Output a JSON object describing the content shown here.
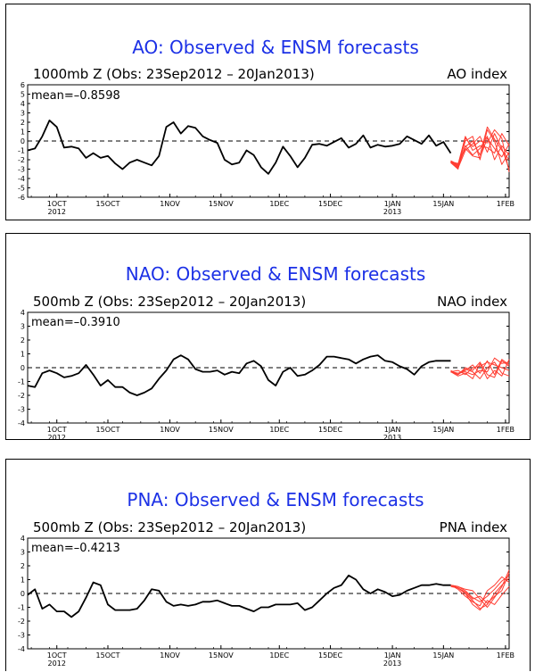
{
  "chart_data": [
    {
      "type": "line",
      "title": "AO: Observed & ENSM forecasts",
      "subtitle_left": "1000mb Z (Obs: 23Sep2012 – 20Jan2013)",
      "subtitle_right": "AO index",
      "mean_label": "mean=–0.8598",
      "ylim": [
        -6,
        6
      ],
      "yticks": [
        -6,
        -5,
        -4,
        -3,
        -2,
        -1,
        0,
        1,
        2,
        3,
        4,
        5,
        6
      ],
      "xticks": [
        "1OCT",
        "15OCT",
        "1NOV",
        "15NOV",
        "1DEC",
        "15DEC",
        "1JAN",
        "15JAN",
        "1FEB"
      ],
      "xtick_years": [
        "2012",
        "2013"
      ],
      "xlim_days": [
        0,
        132
      ],
      "grid": false,
      "zero_line": "dashed",
      "observed_color": "#000000",
      "forecast_color": "#ff3b30",
      "observed": {
        "day": [
          0,
          2,
          4,
          6,
          8,
          10,
          12,
          14,
          16,
          18,
          20,
          22,
          24,
          26,
          28,
          30,
          32,
          34,
          36,
          38,
          40,
          42,
          44,
          46,
          48,
          50,
          52,
          54,
          56,
          58,
          60,
          62,
          64,
          66,
          68,
          70,
          72,
          74,
          76,
          78,
          80,
          82,
          84,
          86,
          88,
          90,
          92,
          94,
          96,
          98,
          100,
          102,
          104,
          106,
          108,
          110,
          112,
          114,
          116
        ],
        "value": [
          -1,
          -0.8,
          0.5,
          2.2,
          1.5,
          -0.7,
          -0.6,
          -0.8,
          -1.8,
          -1.3,
          -1.8,
          -1.6,
          -2.4,
          -3,
          -2.3,
          -2,
          -2.3,
          -2.6,
          -1.6,
          1.5,
          2,
          0.8,
          1.6,
          1.4,
          0.5,
          0.1,
          -0.2,
          -2,
          -2.5,
          -2.3,
          -1,
          -1.5,
          -2.8,
          -3.5,
          -2.3,
          -0.6,
          -1.6,
          -2.8,
          -1.8,
          -0.4,
          -0.3,
          -0.5,
          -0.1,
          0.3,
          -0.7,
          -0.3,
          0.6,
          -0.7,
          -0.4,
          -0.6,
          -0.5,
          -0.3,
          0.5,
          0.1,
          -0.3,
          0.6,
          -0.5,
          -0.1,
          -1.3
        ]
      },
      "forecast": [
        {
          "day": [
            116,
            118,
            120,
            122,
            124,
            126,
            128,
            130,
            132
          ],
          "value": [
            -2.2,
            -2.8,
            -0.5,
            -1.5,
            -0.8,
            0.5,
            -2,
            -0.5,
            -1.5
          ]
        },
        {
          "day": [
            116,
            118,
            120,
            122,
            124,
            126,
            128,
            130,
            132
          ],
          "value": [
            -2.2,
            -2.6,
            0,
            0.5,
            -2,
            1.2,
            0,
            -2.5,
            -1.2
          ]
        },
        {
          "day": [
            116,
            118,
            120,
            122,
            124,
            126,
            128,
            130,
            132
          ],
          "value": [
            -2.3,
            -2.9,
            -1,
            -0.3,
            0.5,
            -1.2,
            0.8,
            -0.8,
            -3
          ]
        },
        {
          "day": [
            116,
            118,
            120,
            122,
            124,
            126,
            128,
            130,
            132
          ],
          "value": [
            -2.1,
            -2.5,
            0.5,
            -1,
            -0.5,
            -0.7,
            -1.3,
            0.8,
            -0.5
          ]
        },
        {
          "day": [
            116,
            118,
            120,
            122,
            124,
            126,
            128,
            130,
            132
          ],
          "value": [
            -2.2,
            -2.7,
            -0.6,
            0,
            -1.5,
            1.5,
            0.2,
            -1,
            -2
          ]
        },
        {
          "day": [
            116,
            118,
            120,
            122,
            124,
            126,
            128,
            130,
            132
          ],
          "value": [
            -2.3,
            -3,
            0.3,
            -0.6,
            0,
            -0.2,
            1.2,
            0.3,
            -3.3
          ]
        },
        {
          "day": [
            116,
            118,
            120,
            122,
            124,
            126,
            128,
            130,
            132
          ],
          "value": [
            -2.2,
            -2.4,
            -0.8,
            -1.6,
            -1.8,
            0.3,
            -0.8,
            -1.7,
            -0.3
          ]
        }
      ]
    },
    {
      "type": "line",
      "title": "NAO: Observed & ENSM forecasts",
      "subtitle_left": "500mb Z (Obs: 23Sep2012 – 20Jan2013)",
      "subtitle_right": "NAO index",
      "mean_label": "mean=–0.3910",
      "ylim": [
        -4,
        4
      ],
      "yticks": [
        -4,
        -3,
        -2,
        -1,
        0,
        1,
        2,
        3,
        4
      ],
      "xticks": [
        "1OCT",
        "15OCT",
        "1NOV",
        "15NOV",
        "1DEC",
        "15DEC",
        "1JAN",
        "15JAN",
        "1FEB"
      ],
      "xtick_years": [
        "2012",
        "2013"
      ],
      "xlim_days": [
        0,
        132
      ],
      "grid": false,
      "zero_line": "dashed",
      "observed_color": "#000000",
      "forecast_color": "#ff3b30",
      "observed": {
        "day": [
          0,
          2,
          4,
          6,
          8,
          10,
          12,
          14,
          16,
          18,
          20,
          22,
          24,
          26,
          28,
          30,
          32,
          34,
          36,
          38,
          40,
          42,
          44,
          46,
          48,
          50,
          52,
          54,
          56,
          58,
          60,
          62,
          64,
          66,
          68,
          70,
          72,
          74,
          76,
          78,
          80,
          82,
          84,
          86,
          88,
          90,
          92,
          94,
          96,
          98,
          100,
          102,
          104,
          106,
          108,
          110,
          112,
          114,
          116
        ],
        "value": [
          -1.3,
          -1.4,
          -0.4,
          -0.2,
          -0.4,
          -0.7,
          -0.6,
          -0.4,
          0.2,
          -0.5,
          -1.3,
          -0.9,
          -1.4,
          -1.4,
          -1.8,
          -2,
          -1.8,
          -1.5,
          -0.8,
          -0.2,
          0.6,
          0.9,
          0.6,
          -0.1,
          -0.3,
          -0.3,
          -0.2,
          -0.5,
          -0.3,
          -0.4,
          0.3,
          0.5,
          0.1,
          -0.9,
          -1.3,
          -0.3,
          0,
          -0.6,
          -0.5,
          -0.2,
          0.2,
          0.8,
          0.8,
          0.7,
          0.6,
          0.3,
          0.6,
          0.8,
          0.9,
          0.5,
          0.4,
          0.1,
          -0.1,
          -0.5,
          0.1,
          0.4,
          0.5,
          0.5,
          0.5
        ]
      },
      "forecast": [
        {
          "day": [
            116,
            118,
            120,
            122,
            124,
            126,
            128,
            130,
            132
          ],
          "value": [
            -0.3,
            -0.4,
            -0.2,
            0.2,
            -0.4,
            0.5,
            -0.5,
            0.6,
            0.2
          ]
        },
        {
          "day": [
            116,
            118,
            120,
            122,
            124,
            126,
            128,
            130,
            132
          ],
          "value": [
            -0.3,
            -0.6,
            -0.4,
            -0.8,
            0.3,
            -0.8,
            -0.2,
            -0.6,
            0.6
          ]
        },
        {
          "day": [
            116,
            118,
            120,
            122,
            124,
            126,
            128,
            130,
            132
          ],
          "value": [
            -0.2,
            -0.5,
            -0.1,
            -0.3,
            -0.8,
            0,
            0.4,
            -0.4,
            -0.6
          ]
        },
        {
          "day": [
            116,
            118,
            120,
            122,
            124,
            126,
            128,
            130,
            132
          ],
          "value": [
            -0.3,
            -0.2,
            -0.5,
            0,
            0.1,
            0.4,
            0.2,
            0,
            -0.2
          ]
        },
        {
          "day": [
            116,
            118,
            120,
            122,
            124,
            126,
            128,
            130,
            132
          ],
          "value": [
            -0.3,
            -0.4,
            -0.3,
            -0.5,
            -0.2,
            -0.3,
            0.7,
            0.3,
            0.4
          ]
        },
        {
          "day": [
            116,
            118,
            120,
            122,
            124,
            126,
            128,
            130,
            132
          ],
          "value": [
            -0.3,
            -0.5,
            0,
            -0.2,
            0.4,
            -0.5,
            -0.7,
            0.5,
            0.1
          ]
        }
      ]
    },
    {
      "type": "line",
      "title": "PNA: Observed & ENSM forecasts",
      "subtitle_left": "500mb Z (Obs: 23Sep2012 – 20Jan2013)",
      "subtitle_right": "PNA index",
      "mean_label": "mean=–0.4213",
      "ylim": [
        -4,
        4
      ],
      "yticks": [
        -4,
        -3,
        -2,
        -1,
        0,
        1,
        2,
        3,
        4
      ],
      "xticks": [
        "1OCT",
        "15OCT",
        "1NOV",
        "15NOV",
        "1DEC",
        "15DEC",
        "1JAN",
        "15JAN",
        "1FEB"
      ],
      "xtick_years": [
        "2012",
        "2013"
      ],
      "xlim_days": [
        0,
        132
      ],
      "grid": false,
      "zero_line": "dashed",
      "observed_color": "#000000",
      "forecast_color": "#ff3b30",
      "observed": {
        "day": [
          0,
          2,
          4,
          6,
          8,
          10,
          12,
          14,
          16,
          18,
          20,
          22,
          24,
          26,
          28,
          30,
          32,
          34,
          36,
          38,
          40,
          42,
          44,
          46,
          48,
          50,
          52,
          54,
          56,
          58,
          60,
          62,
          64,
          66,
          68,
          70,
          72,
          74,
          76,
          78,
          80,
          82,
          84,
          86,
          88,
          90,
          92,
          94,
          96,
          98,
          100,
          102,
          104,
          106,
          108,
          110,
          112,
          114,
          116
        ],
        "value": [
          -0.1,
          0.3,
          -1.1,
          -0.8,
          -1.3,
          -1.3,
          -1.7,
          -1.3,
          -0.3,
          0.8,
          0.6,
          -0.8,
          -1.2,
          -1.2,
          -1.2,
          -1.1,
          -0.5,
          0.3,
          0.2,
          -0.6,
          -0.9,
          -0.8,
          -0.9,
          -0.8,
          -0.6,
          -0.6,
          -0.5,
          -0.7,
          -0.9,
          -0.9,
          -1.1,
          -1.3,
          -1,
          -1,
          -0.8,
          -0.8,
          -0.8,
          -0.7,
          -1.2,
          -1,
          -0.5,
          0,
          0.4,
          0.6,
          1.3,
          1,
          0.3,
          0,
          0.3,
          0.1,
          -0.2,
          -0.1,
          0.2,
          0.4,
          0.6,
          0.6,
          0.7,
          0.6,
          0.6
        ]
      },
      "forecast": [
        {
          "day": [
            116,
            118,
            120,
            122,
            124,
            126,
            128,
            130,
            132
          ],
          "value": [
            0.6,
            0.5,
            0.2,
            -0.3,
            -0.6,
            -0.2,
            0.3,
            0.9,
            1.3
          ]
        },
        {
          "day": [
            116,
            118,
            120,
            122,
            124,
            126,
            128,
            130,
            132
          ],
          "value": [
            0.6,
            0.4,
            0,
            -0.8,
            -1.2,
            -0.5,
            -0.8,
            -0.1,
            0.5
          ]
        },
        {
          "day": [
            116,
            118,
            120,
            122,
            124,
            126,
            128,
            130,
            132
          ],
          "value": [
            0.6,
            0.5,
            0.3,
            0.2,
            -0.4,
            -1,
            -0.3,
            0.5,
            1.7
          ]
        },
        {
          "day": [
            116,
            118,
            120,
            122,
            124,
            126,
            128,
            130,
            132
          ],
          "value": [
            0.6,
            0.3,
            -0.2,
            -0.6,
            -0.9,
            0.2,
            0.6,
            1.2,
            0.8
          ]
        },
        {
          "day": [
            116,
            118,
            120,
            122,
            124,
            126,
            128,
            130,
            132
          ],
          "value": [
            0.6,
            0.4,
            0.1,
            -0.4,
            -0.2,
            -0.7,
            -0.2,
            0.2,
            1.5
          ]
        },
        {
          "day": [
            116,
            118,
            120,
            122,
            124,
            126,
            128,
            130,
            132
          ],
          "value": [
            0.5,
            0.4,
            0,
            -0.5,
            -1.1,
            -0.8,
            0,
            0.6,
            1.1
          ]
        }
      ]
    }
  ]
}
